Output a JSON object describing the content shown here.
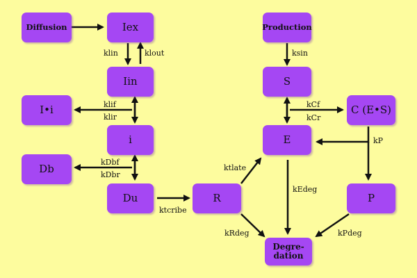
{
  "nodes": {
    "diffusion": "Diffusion",
    "iex": "Iex",
    "iin": "Iin",
    "ii": "I•i",
    "i": "i",
    "db": "Db",
    "du": "Du",
    "r": "R",
    "production": "Production",
    "s": "S",
    "ces": "C (E•S)",
    "e": "E",
    "p": "P",
    "degradation": "Degre-\ndation"
  },
  "rates": {
    "klin": "klin",
    "klout": "klout",
    "klif": "klif",
    "klir": "klir",
    "kdbf": "kDbf",
    "kdbr": "kDbr",
    "ktcribe": "ktcribe",
    "ktlate": "ktlate",
    "krdeg": "kRdeg",
    "kedeg": "kEdeg",
    "ksin": "ksin",
    "kcf": "kCf",
    "kcr": "kCr",
    "kp": "kP",
    "kpdeg": "kPdeg"
  },
  "colors": {
    "background": "#fdfc9e",
    "node_fill": "#a547f3",
    "arrow": "#111111"
  }
}
